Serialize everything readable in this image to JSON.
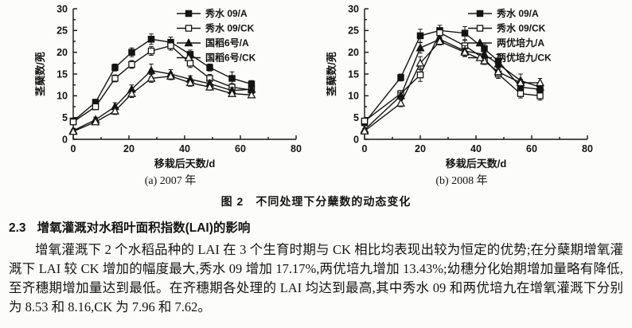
{
  "figure": {
    "caption": "图 2　不同处理下分蘖数的动态变化"
  },
  "section": {
    "number": "2.3",
    "title": "增氧灌溉对水稻叶面积指数(LAI)的影响",
    "paragraph": "增氧灌溉下 2 个水稻品种的 LAI 在 3 个生育时期与 CK 相比均表现出较为恒定的优势;在分蘖期增氧灌溉下 LAI 较 CK 增加的幅度最大,秀水 09 增加 17.17%,两优培九增加 13.43%;幼穗分化始期增加量略有降低,至齐穗期增加量达到最低。在齐穗期各处理的 LAI 均达到最高,其中秀水 09 和两优培九在增氧灌溉下分别为 8.53 和 8.16,CK 为 7.96 和 7.62。"
  },
  "chart_data": [
    {
      "type": "line",
      "title": "(a) 2007 年",
      "xlabel": "移栽后天数/d",
      "ylabel": "茎蘖数/蔸",
      "xlim": [
        0,
        80
      ],
      "ylim": [
        0,
        30
      ],
      "x_ticks": [
        0,
        20,
        40,
        60,
        80
      ],
      "y_ticks": [
        0,
        5,
        10,
        15,
        20,
        25,
        30
      ],
      "grid": false,
      "legend_position": "top-right",
      "x": [
        0,
        8,
        15,
        21,
        28,
        35,
        42,
        49,
        57,
        64
      ],
      "series": [
        {
          "name": "秀水 09/A",
          "marker": "square-filled",
          "values": [
            4.2,
            8.5,
            16.5,
            20.0,
            23.0,
            22.3,
            19.5,
            16.5,
            14.0,
            12.7
          ],
          "errors": [
            0.5,
            0.7,
            0.8,
            1.0,
            1.2,
            1.2,
            1.0,
            0.8,
            1.5,
            0.8
          ]
        },
        {
          "name": "秀水 09/CK",
          "marker": "square-open",
          "values": [
            4.0,
            7.5,
            14.0,
            17.2,
            20.3,
            21.5,
            17.5,
            14.0,
            12.0,
            11.3
          ],
          "errors": [
            0.5,
            0.7,
            0.8,
            0.9,
            1.0,
            1.0,
            1.0,
            0.9,
            0.8,
            0.8
          ]
        },
        {
          "name": "国稻6号/A",
          "marker": "triangle-filled",
          "values": [
            2.0,
            4.5,
            7.5,
            11.5,
            15.8,
            15.0,
            13.8,
            12.8,
            11.2,
            11.5
          ],
          "errors": [
            0.3,
            0.6,
            0.9,
            1.0,
            1.5,
            1.0,
            0.8,
            0.8,
            0.7,
            0.6
          ]
        },
        {
          "name": "国稻6号/CK",
          "marker": "triangle-open",
          "values": [
            1.8,
            4.0,
            6.5,
            10.5,
            14.0,
            14.5,
            13.0,
            12.0,
            10.5,
            10.2
          ],
          "errors": [
            0.3,
            0.5,
            0.8,
            0.9,
            0.9,
            0.8,
            0.8,
            0.7,
            0.6,
            0.6
          ]
        }
      ]
    },
    {
      "type": "line",
      "title": "(b) 2008 年",
      "xlabel": "移栽后天数/d",
      "ylabel": "茎蘖数/蔸",
      "xlim": [
        0,
        80
      ],
      "ylim": [
        0,
        30
      ],
      "x_ticks": [
        0,
        20,
        40,
        60,
        80
      ],
      "y_ticks": [
        0,
        5,
        10,
        15,
        20,
        25,
        30
      ],
      "grid": false,
      "legend_position": "top-right",
      "x": [
        0,
        13,
        20,
        27,
        36,
        43,
        48,
        56,
        63
      ],
      "series": [
        {
          "name": "秀水 09/A",
          "marker": "square-filled",
          "values": [
            3.8,
            14.2,
            23.8,
            25.0,
            24.4,
            20.8,
            18.0,
            12.0,
            11.5
          ],
          "errors": [
            0.4,
            0.8,
            1.5,
            1.2,
            1.5,
            1.0,
            1.5,
            1.0,
            0.8
          ]
        },
        {
          "name": "秀水 09/CK",
          "marker": "square-open",
          "values": [
            4.2,
            10.5,
            14.8,
            24.5,
            21.5,
            18.5,
            15.0,
            10.5,
            10.0
          ],
          "errors": [
            0.5,
            0.7,
            1.5,
            1.0,
            1.2,
            1.0,
            1.0,
            1.0,
            1.0
          ]
        },
        {
          "name": "两优培九/A",
          "marker": "triangle-filled",
          "values": [
            2.2,
            10.0,
            21.0,
            23.0,
            20.3,
            19.5,
            17.3,
            13.5,
            12.0
          ],
          "errors": [
            0.3,
            0.7,
            1.2,
            0.8,
            1.2,
            1.0,
            1.0,
            1.5,
            0.8
          ]
        },
        {
          "name": "两优培九/CK",
          "marker": "triangle-open",
          "values": [
            1.9,
            8.3,
            17.5,
            22.5,
            20.0,
            18.0,
            15.5,
            13.0,
            13.0
          ],
          "errors": [
            0.3,
            0.8,
            1.5,
            0.8,
            1.0,
            0.8,
            0.8,
            0.8,
            1.0
          ]
        }
      ]
    }
  ]
}
